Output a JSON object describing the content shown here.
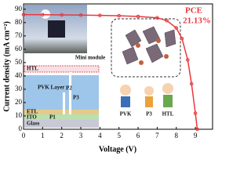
{
  "chart_data": {
    "type": "line",
    "x_label": "Voltage (V)",
    "y_label": "Current density (mA cm⁻²)",
    "annotation": "PCE",
    "annotation_value": "21.13%",
    "x": [
      0,
      1,
      2,
      3,
      4,
      5,
      6,
      7,
      7.5,
      8,
      8.3,
      8.6,
      8.8,
      9.0,
      9.1
    ],
    "series": [
      {
        "color": "#e8383d",
        "values": [
          86,
          85.9,
          85.8,
          85.6,
          85.4,
          85.1,
          84.6,
          83.6,
          81.5,
          76,
          68,
          52,
          34,
          12,
          0
        ]
      }
    ],
    "xlim": [
      0,
      9.9
    ],
    "ylim": [
      0,
      94
    ],
    "xticks": [
      0,
      1,
      2,
      3,
      4,
      5,
      6,
      7,
      8,
      9
    ],
    "yticks": [
      0,
      10,
      20,
      30,
      40,
      50,
      60,
      70,
      80,
      90
    ]
  },
  "insets": {
    "module": "Mini module",
    "layers": [
      "HTL",
      "PVK Layer",
      "ETL",
      "ITO",
      "Glass"
    ],
    "scribes": [
      "P1",
      "P2",
      "P3"
    ],
    "people": [
      "PVK",
      "P3",
      "HTL"
    ]
  }
}
